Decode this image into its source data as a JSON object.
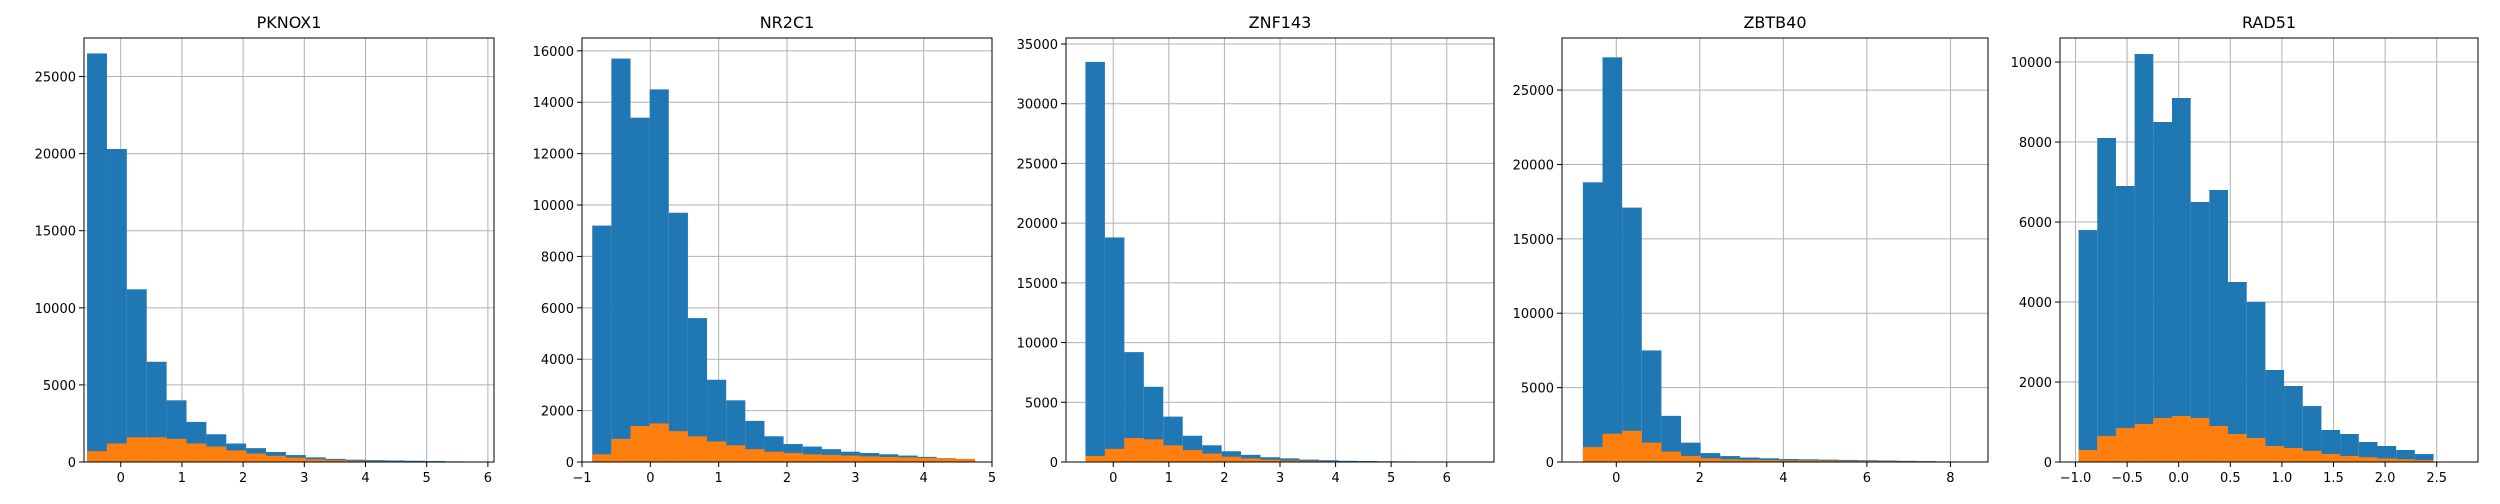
{
  "colors": {
    "series_total": "#1f77b4",
    "series_subset": "#ff7f0e",
    "grid": "#b0b0b0"
  },
  "chart_data": [
    {
      "type": "bar",
      "title": "PKNOX1",
      "bin_start": -0.55,
      "bin_width": 0.325,
      "xlim": [
        -0.6,
        6.1
      ],
      "ylim": [
        0,
        27500
      ],
      "xticks": [
        0,
        1,
        2,
        3,
        4,
        5,
        6
      ],
      "yticks": [
        0,
        5000,
        10000,
        15000,
        20000,
        25000
      ],
      "grid": true,
      "series": [
        {
          "values": [
            26500,
            20300,
            11200,
            6500,
            4000,
            2600,
            1800,
            1200,
            900,
            650,
            450,
            300,
            200,
            150,
            120,
            100,
            80,
            60,
            40,
            30
          ]
        },
        {
          "values": [
            700,
            1200,
            1600,
            1600,
            1500,
            1200,
            1000,
            750,
            550,
            400,
            280,
            180,
            120,
            80,
            50,
            40,
            30,
            20,
            15,
            10
          ]
        }
      ]
    },
    {
      "type": "bar",
      "title": "NR2C1",
      "bin_start": -0.85,
      "bin_width": 0.28,
      "xlim": [
        -1.0,
        5.0
      ],
      "ylim": [
        0,
        16500
      ],
      "xticks": [
        -1,
        0,
        1,
        2,
        3,
        4,
        5
      ],
      "yticks": [
        0,
        2000,
        4000,
        6000,
        8000,
        10000,
        12000,
        14000,
        16000
      ],
      "grid": true,
      "series": [
        {
          "values": [
            9200,
            15700,
            13400,
            14500,
            9700,
            5600,
            3200,
            2400,
            1600,
            1000,
            700,
            600,
            500,
            400,
            350,
            300,
            250,
            200,
            150,
            100
          ]
        },
        {
          "values": [
            300,
            900,
            1400,
            1500,
            1200,
            1000,
            800,
            650,
            500,
            400,
            350,
            300,
            280,
            250,
            220,
            200,
            180,
            160,
            140,
            120
          ]
        }
      ]
    },
    {
      "type": "bar",
      "title": "ZNF143",
      "bin_start": -0.5,
      "bin_width": 0.35,
      "xlim": [
        -0.85,
        6.85
      ],
      "ylim": [
        0,
        35500
      ],
      "xticks": [
        0,
        1,
        2,
        3,
        4,
        5,
        6
      ],
      "yticks": [
        0,
        5000,
        10000,
        15000,
        20000,
        25000,
        30000,
        35000
      ],
      "grid": true,
      "series": [
        {
          "values": [
            33500,
            18800,
            9200,
            6300,
            3800,
            2200,
            1400,
            900,
            600,
            400,
            300,
            200,
            150,
            100,
            80,
            60,
            50,
            40,
            30,
            20
          ]
        },
        {
          "values": [
            500,
            1100,
            2000,
            1900,
            1400,
            1000,
            700,
            450,
            300,
            200,
            130,
            90,
            60,
            40,
            30,
            20,
            15,
            10,
            8,
            5
          ]
        }
      ]
    },
    {
      "type": "bar",
      "title": "ZBTB40",
      "bin_start": -0.8,
      "bin_width": 0.47,
      "xlim": [
        -1.3,
        8.9
      ],
      "ylim": [
        0,
        28500
      ],
      "xticks": [
        0,
        2,
        4,
        6,
        8
      ],
      "yticks": [
        0,
        5000,
        10000,
        15000,
        20000,
        25000
      ],
      "grid": true,
      "series": [
        {
          "values": [
            18800,
            27200,
            17100,
            7500,
            3100,
            1300,
            600,
            400,
            300,
            250,
            200,
            180,
            160,
            140,
            120,
            100,
            80,
            60,
            40,
            30
          ]
        },
        {
          "values": [
            1000,
            1900,
            2100,
            1300,
            700,
            400,
            250,
            180,
            150,
            130,
            110,
            100,
            90,
            80,
            70,
            60,
            50,
            40,
            30,
            20
          ]
        }
      ]
    },
    {
      "type": "bar",
      "title": "RAD51",
      "bin_start": -0.97,
      "bin_width": 0.181,
      "xlim": [
        -1.15,
        2.9
      ],
      "ylim": [
        0,
        10600
      ],
      "xticks": [
        -1.0,
        -0.5,
        0.0,
        0.5,
        1.0,
        1.5,
        2.0,
        2.5
      ],
      "xtick_labels": [
        "−1.0",
        "−0.5",
        "0.0",
        "0.5",
        "1.0",
        "1.5",
        "2.0",
        "2.5"
      ],
      "yticks": [
        0,
        2000,
        4000,
        6000,
        8000,
        10000
      ],
      "grid": true,
      "series": [
        {
          "values": [
            5800,
            8100,
            6900,
            10200,
            8500,
            9100,
            6500,
            6800,
            4500,
            4000,
            2300,
            1900,
            1400,
            800,
            700,
            500,
            400,
            300,
            200
          ]
        },
        {
          "values": [
            300,
            650,
            850,
            950,
            1100,
            1150,
            1100,
            900,
            700,
            600,
            400,
            350,
            280,
            200,
            150,
            120,
            90,
            70,
            50
          ]
        }
      ]
    }
  ]
}
